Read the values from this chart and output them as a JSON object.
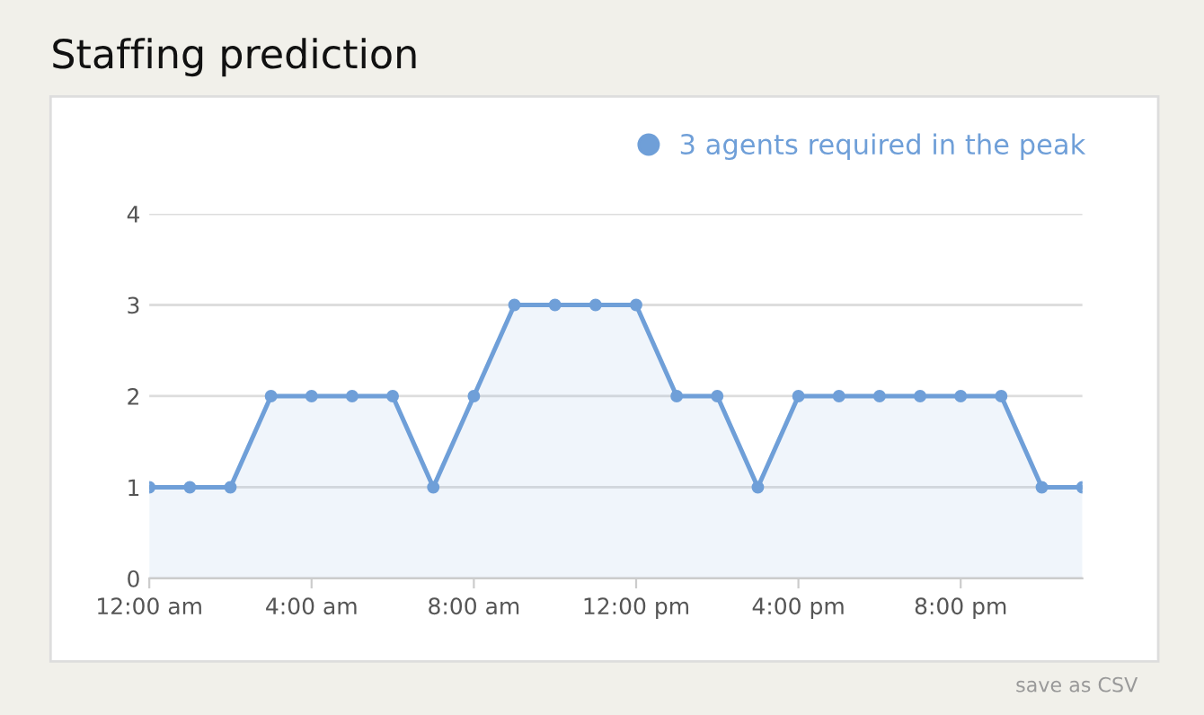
{
  "chart_data": {
    "type": "area",
    "title": "Staffing prediction",
    "x": [
      0,
      1,
      2,
      3,
      4,
      5,
      6,
      7,
      8,
      9,
      10,
      11,
      12,
      13,
      14,
      15,
      16,
      17,
      18,
      19,
      20,
      21,
      22,
      23
    ],
    "series": [
      {
        "name": "3 agents required in the peak",
        "color": "#6f9fd8",
        "values": [
          1,
          1,
          1,
          2,
          2,
          2,
          2,
          1,
          2,
          3,
          3,
          3,
          3,
          2,
          2,
          1,
          2,
          2,
          2,
          2,
          2,
          2,
          1,
          1
        ]
      }
    ],
    "xlim": [
      0,
      23
    ],
    "xticks": [
      {
        "value": 0,
        "label": "12:00 am"
      },
      {
        "value": 4,
        "label": "4:00 am"
      },
      {
        "value": 8,
        "label": "8:00 am"
      },
      {
        "value": 12,
        "label": "12:00 pm"
      },
      {
        "value": 16,
        "label": "4:00 pm"
      },
      {
        "value": 20,
        "label": "8:00 pm"
      }
    ],
    "ylim": [
      0,
      4
    ],
    "yticks": [
      0,
      1,
      2,
      3,
      4
    ],
    "grid": "y",
    "legend": "top right",
    "marker": "circle",
    "line_style": "solid",
    "annotations": [
      "save as CSV"
    ]
  }
}
